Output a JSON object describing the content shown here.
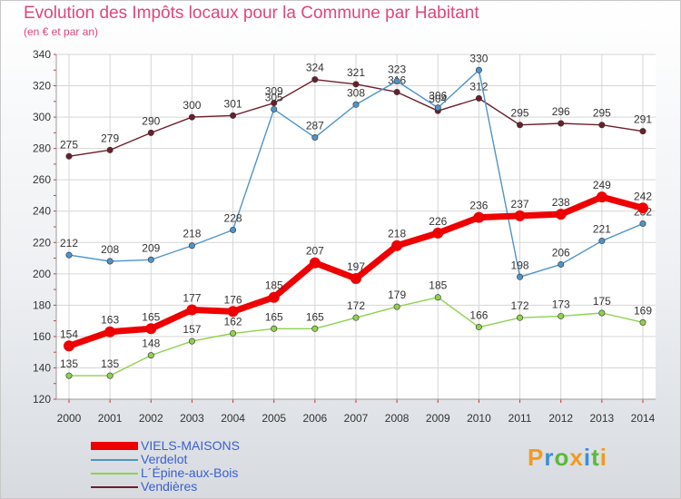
{
  "chart_data": {
    "type": "line",
    "title": "Evolution des Impôts locaux pour la Commune par Habitant",
    "subtitle": "(en € et par an)",
    "xlabel": "",
    "ylabel": "",
    "categories": [
      "2000",
      "2001",
      "2002",
      "2003",
      "2004",
      "2005",
      "2006",
      "2007",
      "2008",
      "2009",
      "2010",
      "2011",
      "2012",
      "2013",
      "2014"
    ],
    "ylim": [
      120,
      340
    ],
    "yticks": [
      120,
      140,
      160,
      180,
      200,
      220,
      240,
      260,
      280,
      300,
      320,
      340
    ],
    "grid": true,
    "series": [
      {
        "name": "Vendières",
        "color": "#6b1f2a",
        "values": [
          275,
          279,
          290,
          300,
          301,
          309,
          324,
          321,
          316,
          304,
          312,
          295,
          296,
          295,
          291
        ]
      },
      {
        "name": "Verdelot",
        "color": "#4f94c9",
        "values": [
          212,
          208,
          209,
          218,
          228,
          305,
          287,
          308,
          323,
          306,
          330,
          198,
          206,
          221,
          232
        ]
      },
      {
        "name": "L´Épine-aux-Bois",
        "color": "#8fd14f",
        "values": [
          135,
          135,
          148,
          157,
          162,
          165,
          165,
          172,
          179,
          185,
          166,
          172,
          173,
          175,
          169
        ]
      },
      {
        "name": "VIELS-MAISONS",
        "color": "#ee0000",
        "values": [
          154,
          163,
          165,
          177,
          176,
          185,
          207,
          197,
          218,
          226,
          236,
          237,
          238,
          249,
          242
        ]
      }
    ],
    "legend": [
      "VIELS-MAISONS",
      "Verdelot",
      "L´Épine-aux-Bois",
      "Vendières"
    ]
  },
  "brand": {
    "logo_text": "Proxiti"
  }
}
